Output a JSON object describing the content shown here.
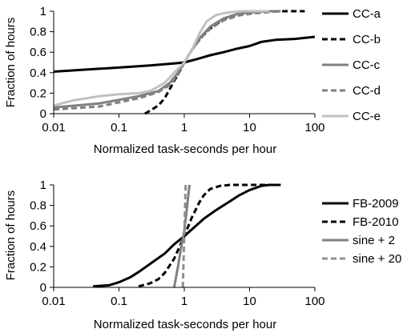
{
  "chart_data": [
    {
      "type": "line",
      "title": "",
      "xlabel": "Normalized task-seconds per hour",
      "ylabel": "Fraction of hours",
      "xscale": "log",
      "xlim": [
        0.01,
        100
      ],
      "ylim": [
        0,
        1
      ],
      "xticks": [
        0.01,
        0.1,
        1,
        10,
        100
      ],
      "xtick_labels": [
        "0.01",
        "0.1",
        "1",
        "10",
        "100"
      ],
      "yticks": [
        0,
        0.2,
        0.4,
        0.6,
        0.8,
        1
      ],
      "ytick_labels": [
        "0",
        "0.2",
        "0.4",
        "0.6",
        "0.8",
        "1"
      ],
      "grid": false,
      "legend_position": "right",
      "series": [
        {
          "name": "CC-a",
          "color": "#000000",
          "dash": "solid",
          "x": [
            0.01,
            0.03,
            0.1,
            0.3,
            0.7,
            1,
            1.5,
            2.5,
            4,
            6,
            10,
            15,
            25,
            50,
            100
          ],
          "y": [
            0.41,
            0.43,
            0.45,
            0.47,
            0.49,
            0.5,
            0.53,
            0.57,
            0.6,
            0.63,
            0.66,
            0.7,
            0.72,
            0.73,
            0.75
          ]
        },
        {
          "name": "CC-b",
          "color": "#000000",
          "dash": "dashed",
          "x": [
            0.25,
            0.3,
            0.4,
            0.5,
            0.6,
            0.7,
            0.8,
            1,
            1.3,
            1.7,
            2.2,
            3,
            4,
            5,
            7,
            10,
            20,
            70
          ],
          "y": [
            0,
            0.03,
            0.08,
            0.15,
            0.24,
            0.32,
            0.38,
            0.5,
            0.62,
            0.72,
            0.8,
            0.87,
            0.92,
            0.95,
            0.97,
            0.99,
            1.0,
            1.0
          ]
        },
        {
          "name": "CC-c",
          "color": "#808080",
          "dash": "solid",
          "x": [
            0.01,
            0.05,
            0.2,
            0.4,
            0.6,
            0.8,
            1,
            1.3,
            1.8,
            2.5,
            4,
            7,
            12,
            20,
            30
          ],
          "y": [
            0.06,
            0.1,
            0.17,
            0.22,
            0.3,
            0.4,
            0.5,
            0.62,
            0.75,
            0.85,
            0.93,
            0.98,
            0.99,
            1.0,
            1.0
          ]
        },
        {
          "name": "CC-d",
          "color": "#808080",
          "dash": "dashed",
          "x": [
            0.01,
            0.05,
            0.2,
            0.4,
            0.6,
            0.8,
            1,
            1.3,
            1.8,
            2.5,
            4,
            7,
            12,
            30
          ],
          "y": [
            0.04,
            0.07,
            0.15,
            0.21,
            0.28,
            0.38,
            0.5,
            0.62,
            0.74,
            0.83,
            0.91,
            0.96,
            0.98,
            1.0
          ]
        },
        {
          "name": "CC-e",
          "color": "#c0c0c0",
          "dash": "solid",
          "x": [
            0.01,
            0.02,
            0.05,
            0.1,
            0.2,
            0.3,
            0.5,
            0.7,
            1,
            1.3,
            1.7,
            2.2,
            3,
            4,
            5,
            8,
            20
          ],
          "y": [
            0.08,
            0.13,
            0.17,
            0.19,
            0.2,
            0.22,
            0.3,
            0.4,
            0.5,
            0.62,
            0.78,
            0.9,
            0.96,
            0.98,
            0.99,
            1.0,
            1.0
          ]
        }
      ]
    },
    {
      "type": "line",
      "title": "",
      "xlabel": "Normalized task-seconds per hour",
      "ylabel": "Fraction of hours",
      "xscale": "log",
      "xlim": [
        0.01,
        100
      ],
      "ylim": [
        0,
        1
      ],
      "xticks": [
        0.01,
        0.1,
        1,
        10,
        100
      ],
      "xtick_labels": [
        "0.01",
        "0.1",
        "1",
        "10",
        "100"
      ],
      "yticks": [
        0,
        0.2,
        0.4,
        0.6,
        0.8,
        1
      ],
      "ytick_labels": [
        "0",
        "0.2",
        "0.4",
        "0.6",
        "0.8",
        "1"
      ],
      "grid": false,
      "legend_position": "right",
      "series": [
        {
          "name": "FB-2009",
          "color": "#000000",
          "dash": "solid",
          "x": [
            0.04,
            0.07,
            0.1,
            0.15,
            0.2,
            0.3,
            0.5,
            0.7,
            1,
            1.5,
            2,
            3,
            5,
            7,
            10,
            15,
            20,
            30
          ],
          "y": [
            0.01,
            0.02,
            0.05,
            0.1,
            0.15,
            0.23,
            0.33,
            0.42,
            0.5,
            0.6,
            0.67,
            0.75,
            0.84,
            0.9,
            0.95,
            0.99,
            1.0,
            1.0
          ]
        },
        {
          "name": "FB-2010",
          "color": "#000000",
          "dash": "dashed",
          "x": [
            0.2,
            0.3,
            0.4,
            0.5,
            0.7,
            1,
            1.3,
            1.7,
            2,
            2.5,
            3.5,
            5,
            10,
            20
          ],
          "y": [
            0.01,
            0.04,
            0.08,
            0.14,
            0.28,
            0.5,
            0.68,
            0.83,
            0.9,
            0.96,
            0.99,
            1.0,
            1.0,
            1.0
          ]
        },
        {
          "name": "sine + 2",
          "color": "#808080",
          "dash": "solid",
          "x": [
            0.7,
            0.8,
            0.9,
            1,
            1.1,
            1.2
          ],
          "y": [
            0,
            0.2,
            0.4,
            0.55,
            0.78,
            1.0
          ]
        },
        {
          "name": "sine + 20",
          "color": "#909090",
          "dash": "dashed",
          "x": [
            0.95,
            0.97,
            0.99,
            1.0,
            1.01,
            1.03,
            1.05
          ],
          "y": [
            0,
            0.2,
            0.4,
            0.5,
            0.6,
            0.8,
            1.0
          ]
        }
      ]
    }
  ]
}
